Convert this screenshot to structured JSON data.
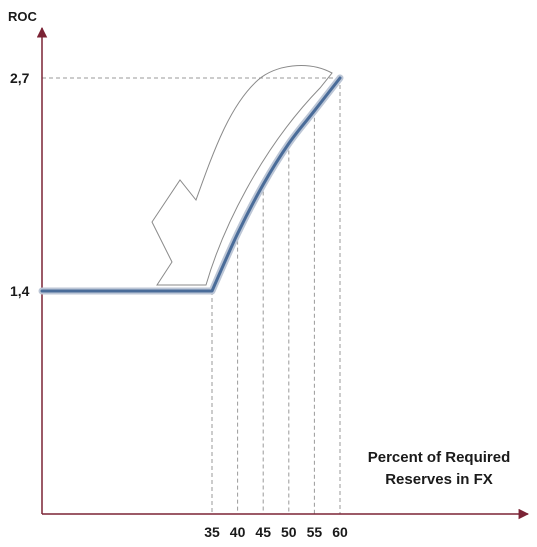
{
  "chart_data": {
    "type": "line",
    "ylabel": "ROC",
    "xlabel_lines": [
      "Percent of Required",
      "Reserves in FX"
    ],
    "x_ticks": [
      "35",
      "40",
      "45",
      "50",
      "55",
      "60"
    ],
    "y_ticks": [
      "1,4",
      "2,7"
    ],
    "x": [
      0,
      35,
      40,
      45,
      50,
      55,
      60
    ],
    "y": [
      1.4,
      1.4,
      1.75,
      2.05,
      2.3,
      2.5,
      2.7
    ],
    "reference_lines": {
      "x": [
        35,
        40,
        45,
        50,
        55,
        60
      ],
      "y": [
        2.7
      ]
    },
    "annotation": "curved arrow pointing from the top of the curve down toward its base",
    "colors": {
      "axis": "#7b2335",
      "line": "#4a6c99",
      "dash": "#9a9a9a",
      "arrow": "#8a8a8a"
    }
  }
}
